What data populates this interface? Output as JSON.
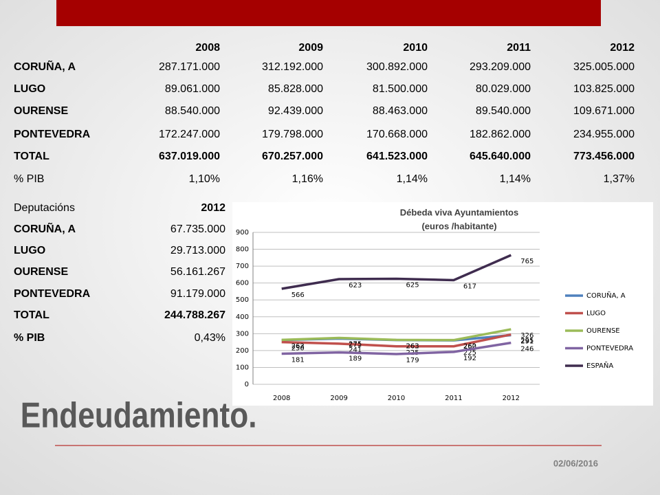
{
  "table1": {
    "columns": [
      "2008",
      "2009",
      "2010",
      "2011",
      "2012"
    ],
    "rows": [
      {
        "label": "CORUÑA, A",
        "values": [
          "287.171.000",
          "312.192.000",
          "300.892.000",
          "293.209.000",
          "325.005.000"
        ]
      },
      {
        "label": "LUGO",
        "values": [
          "89.061.000",
          "85.828.000",
          "81.500.000",
          "80.029.000",
          "103.825.000"
        ]
      },
      {
        "label": "OURENSE",
        "values": [
          "88.540.000",
          "92.439.000",
          "88.463.000",
          "89.540.000",
          "109.671.000"
        ]
      },
      {
        "label": "PONTEVEDRA",
        "values": [
          "172.247.000",
          "179.798.000",
          "170.668.000",
          "182.862.000",
          "234.955.000"
        ]
      },
      {
        "label": "TOTAL",
        "values": [
          "637.019.000",
          "670.257.000",
          "641.523.000",
          "645.640.000",
          "773.456.000"
        ]
      },
      {
        "label": "% PIB",
        "values": [
          "1,10%",
          "1,16%",
          "1,14%",
          "1,14%",
          "1,37%"
        ]
      }
    ]
  },
  "table2": {
    "header": [
      "Deputacións",
      "2012"
    ],
    "rows": [
      {
        "label": "CORUÑA, A",
        "value": "67.735.000"
      },
      {
        "label": "LUGO",
        "value": "29.713.000"
      },
      {
        "label": "OURENSE",
        "value": "56.161.267"
      },
      {
        "label": "PONTEVEDRA",
        "value": "91.179.000"
      },
      {
        "label": "TOTAL",
        "value": "244.788.267"
      },
      {
        "label": "% PIB",
        "value": "0,43%"
      }
    ]
  },
  "heading": "Endeudamiento.",
  "date": "02/06/2016",
  "chart_data": {
    "type": "line",
    "title": "Débeda viva Ayuntamientos",
    "subtitle": "(euros /habitante)",
    "categories": [
      "2008",
      "2009",
      "2010",
      "2011",
      "2012"
    ],
    "ylim": [
      0,
      900
    ],
    "yticks": [
      0,
      100,
      200,
      300,
      400,
      500,
      600,
      700,
      800,
      900
    ],
    "grid": true,
    "series": [
      {
        "name": "CORUÑA, A",
        "color": "#4f81bd",
        "values": [
          262,
          271,
          262,
          260,
          291
        ]
      },
      {
        "name": "LUGO",
        "color": "#c0504d",
        "values": [
          250,
          241,
          225,
          225,
          295
        ]
      },
      {
        "name": "OURENSE",
        "color": "#9bbb59",
        "values": [
          263,
          275,
          263,
          262,
          326
        ]
      },
      {
        "name": "PONTEVEDRA",
        "color": "#8064a2",
        "values": [
          181,
          189,
          179,
          192,
          246
        ]
      },
      {
        "name": "ESPAÑA",
        "color": "#3f2c4f",
        "values": [
          566,
          623,
          625,
          617,
          765
        ]
      }
    ]
  }
}
